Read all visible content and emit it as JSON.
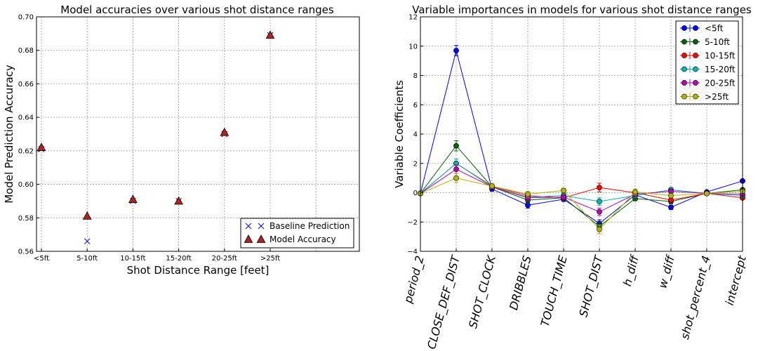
{
  "chart_data": [
    {
      "type": "scatter",
      "title": "Model accuracies over various shot distance ranges",
      "xlabel": "Shot Distance Range [feet]",
      "ylabel": "Model Prediction Accuracy",
      "categories": [
        "<5ft",
        "5-10ft",
        "10-15ft",
        "15-20ft",
        "20-25ft",
        ">25ft"
      ],
      "ylim": [
        0.56,
        0.7
      ],
      "yticks": [
        "0.56",
        "0.58",
        "0.60",
        "0.62",
        "0.64",
        "0.66",
        "0.68",
        "0.70"
      ],
      "grid": true,
      "legend_position": "lower-right",
      "series": [
        {
          "name": "Baseline Prediction",
          "marker": "x",
          "color": "#0000ff",
          "values": [
            0.621,
            0.566,
            0.59,
            0.59,
            0.63,
            0.689
          ]
        },
        {
          "name": "Model Accuracy",
          "marker": "triangle",
          "color": "#b22222",
          "values": [
            0.622,
            0.581,
            0.591,
            0.59,
            0.631,
            0.689
          ]
        }
      ]
    },
    {
      "type": "line",
      "title": "Variable importances in models for various shot distance ranges",
      "ylabel": "Variable Coefficients",
      "categories": [
        "period_2",
        "CLOSE_DEF_DIST",
        "SHOT_CLOCK",
        "DRIBBLES",
        "TOUCH_TIME",
        "SHOT_DIST",
        "h_diff",
        "w_diff",
        "shot_percent_4",
        "intercept"
      ],
      "ylim": [
        -4,
        12
      ],
      "yticks": [
        "−4",
        "−2",
        "0",
        "2",
        "4",
        "6",
        "8",
        "10",
        "12"
      ],
      "grid": true,
      "legend_position": "top-right",
      "series": [
        {
          "name": "<5ft",
          "color": "#0000ff",
          "values": [
            -0.05,
            9.7,
            0.25,
            -0.85,
            -0.45,
            -2.1,
            -0.15,
            -1.0,
            0.05,
            0.8
          ],
          "errors": [
            0.1,
            0.35,
            0.15,
            0.2,
            0.15,
            0.25,
            0.15,
            0.15,
            0.1,
            0.1
          ]
        },
        {
          "name": "5-10ft",
          "color": "#006400",
          "values": [
            -0.05,
            3.2,
            0.4,
            -0.5,
            -0.35,
            -2.3,
            -0.4,
            -0.6,
            -0.05,
            0.2
          ],
          "errors": [
            0.1,
            0.35,
            0.15,
            0.2,
            0.15,
            0.25,
            0.15,
            0.15,
            0.1,
            0.1
          ]
        },
        {
          "name": "10-15ft",
          "color": "#ff0000",
          "values": [
            -0.05,
            2.0,
            0.45,
            -0.2,
            -0.35,
            0.35,
            0.0,
            -0.5,
            -0.05,
            -0.35
          ],
          "errors": [
            0.1,
            0.3,
            0.15,
            0.2,
            0.15,
            0.3,
            0.15,
            0.15,
            0.1,
            0.1
          ]
        },
        {
          "name": "15-20ft",
          "color": "#00b3b3",
          "values": [
            -0.05,
            2.0,
            0.4,
            -0.3,
            -0.2,
            -0.6,
            -0.2,
            0.2,
            -0.05,
            -0.2
          ],
          "errors": [
            0.1,
            0.3,
            0.15,
            0.2,
            0.15,
            0.25,
            0.15,
            0.15,
            0.1,
            0.1
          ]
        },
        {
          "name": "20-25ft",
          "color": "#b300b3",
          "values": [
            -0.05,
            1.6,
            0.4,
            -0.35,
            -0.3,
            -1.3,
            -0.1,
            0.1,
            -0.05,
            -0.1
          ],
          "errors": [
            0.1,
            0.3,
            0.15,
            0.2,
            0.15,
            0.25,
            0.15,
            0.15,
            0.1,
            0.1
          ]
        },
        {
          "name": ">25ft",
          "color": "#b3b300",
          "values": [
            -0.05,
            1.0,
            0.45,
            -0.1,
            0.15,
            -2.5,
            0.05,
            -0.2,
            -0.05,
            0.1
          ],
          "errors": [
            0.1,
            0.3,
            0.15,
            0.2,
            0.15,
            0.3,
            0.2,
            0.15,
            0.1,
            0.1
          ]
        }
      ]
    }
  ]
}
